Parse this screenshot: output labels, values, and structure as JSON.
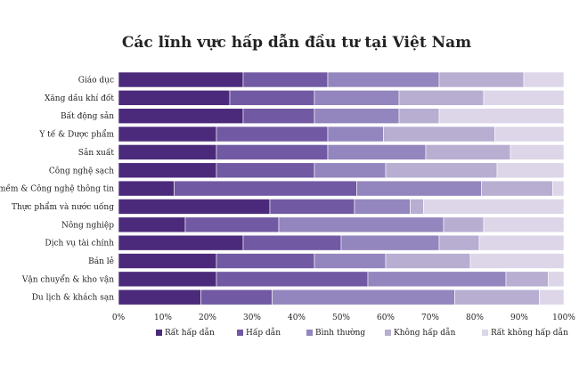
{
  "chart_data": {
    "type": "bar",
    "orientation": "horizontal",
    "stacked": true,
    "title": "Các lĩnh vực hấp dẫn đầu tư tại Việt Nam",
    "xlim": [
      0,
      100
    ],
    "x_ticks": [
      "0%",
      "10%",
      "20%",
      "30%",
      "40%",
      "50%",
      "60%",
      "70%",
      "80%",
      "90%",
      "100%"
    ],
    "legend_position": "bottom",
    "categories": [
      "Giáo dục",
      "Xăng dầu khí đốt",
      "Bất động sản",
      "Y tế & Dược phẩm",
      "Sản xuất",
      "Công nghệ sạch",
      "Phần mềm & Công nghệ thông tin",
      "Thực phẩm và nước uống",
      "Nông nghiệp",
      "Dịch vụ tài chính",
      "Bán lẻ",
      "Vận chuyển & kho vận",
      "Du lịch & khách sạn"
    ],
    "series": [
      {
        "name": "Rất hấp dẫn",
        "color": "#4b2a7b",
        "values": [
          28,
          25,
          28,
          22,
          22,
          22,
          12.5,
          34,
          15,
          28,
          22,
          22,
          18.5
        ]
      },
      {
        "name": "Hấp dẫn",
        "color": "#7159a3",
        "values": [
          19,
          19,
          16,
          25,
          25,
          22,
          41,
          19,
          21,
          22,
          22,
          34,
          16
        ]
      },
      {
        "name": "Bình thường",
        "color": "#9385bd",
        "values": [
          25,
          19,
          19,
          12.5,
          22,
          16,
          28,
          12.5,
          37,
          22,
          16,
          31,
          41
        ]
      },
      {
        "name": "Không hấp dẫn",
        "color": "#b7aed2",
        "values": [
          19,
          19,
          9,
          25,
          19,
          25,
          16,
          3,
          9,
          9,
          19,
          9.5,
          19
        ]
      },
      {
        "name": "Rất không hấp dẫn",
        "color": "#dcd6e8",
        "values": [
          9,
          18,
          28,
          15.5,
          12,
          15,
          2.5,
          31.5,
          18,
          19,
          21,
          3.5,
          5.5
        ]
      }
    ]
  }
}
